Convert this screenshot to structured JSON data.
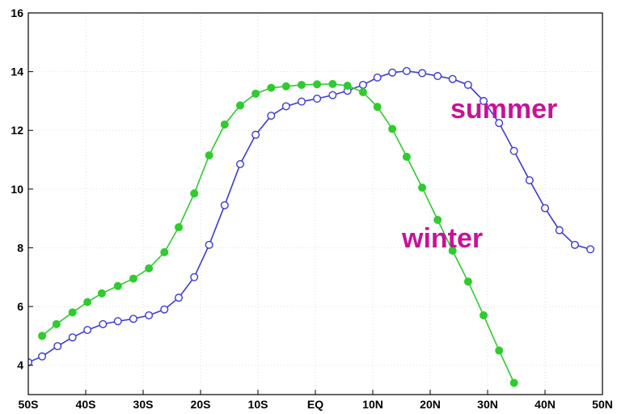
{
  "chart_data": {
    "type": "line",
    "xlim": [
      -50,
      50
    ],
    "xticks": [
      {
        "value": -50,
        "label": "50S"
      },
      {
        "value": -40,
        "label": "40S"
      },
      {
        "value": -30,
        "label": "30S"
      },
      {
        "value": -20,
        "label": "20S"
      },
      {
        "value": -10,
        "label": "10S"
      },
      {
        "value": 0,
        "label": "EQ"
      },
      {
        "value": 10,
        "label": "10N"
      },
      {
        "value": 20,
        "label": "20N"
      },
      {
        "value": 30,
        "label": "30N"
      },
      {
        "value": 40,
        "label": "40N"
      },
      {
        "value": 50,
        "label": "50N"
      }
    ],
    "ylim": [
      3,
      16
    ],
    "yticks": [
      4,
      6,
      8,
      10,
      12,
      14,
      16
    ],
    "grid": true,
    "label_color": "#c8129a",
    "series": [
      {
        "name": "summer",
        "color": "#3a3ad8",
        "marker": "open",
        "x": [
          -50,
          -47.6,
          -44.9,
          -42.3,
          -39.7,
          -37.0,
          -34.4,
          -31.7,
          -29.0,
          -26.3,
          -23.8,
          -21.1,
          -18.5,
          -15.8,
          -13.1,
          -10.4,
          -7.7,
          -5.1,
          -2.4,
          0.3,
          3.0,
          5.6,
          8.3,
          10.8,
          13.4,
          15.9,
          18.6,
          21.3,
          23.9,
          26.6,
          29.3,
          32.0,
          34.6,
          37.3,
          40.0,
          42.5,
          45.2,
          47.9
        ],
        "values": [
          4.1,
          4.3,
          4.65,
          4.95,
          5.2,
          5.4,
          5.5,
          5.58,
          5.7,
          5.9,
          6.3,
          7.0,
          8.1,
          9.45,
          10.85,
          11.85,
          12.5,
          12.82,
          12.98,
          13.08,
          13.2,
          13.35,
          13.55,
          13.8,
          13.97,
          14.02,
          13.95,
          13.85,
          13.75,
          13.55,
          13.0,
          12.25,
          11.3,
          10.3,
          9.35,
          8.6,
          8.1,
          7.95
        ]
      },
      {
        "name": "winter",
        "color": "#2ecc2e",
        "marker": "filled",
        "x": [
          -47.6,
          -45.1,
          -42.3,
          -39.7,
          -37.2,
          -34.4,
          -31.7,
          -29.0,
          -26.3,
          -23.8,
          -21.1,
          -18.5,
          -15.8,
          -13.1,
          -10.4,
          -7.7,
          -5.1,
          -2.4,
          0.3,
          3.0,
          5.6,
          8.3,
          10.8,
          13.4,
          15.9,
          18.6,
          21.3,
          23.9,
          26.6,
          29.3,
          32.0,
          34.6
        ],
        "values": [
          5.0,
          5.4,
          5.8,
          6.15,
          6.45,
          6.7,
          6.95,
          7.3,
          7.85,
          8.7,
          9.85,
          11.15,
          12.2,
          12.85,
          13.25,
          13.45,
          13.5,
          13.55,
          13.57,
          13.58,
          13.52,
          13.3,
          12.8,
          12.05,
          11.1,
          10.05,
          8.95,
          7.9,
          6.85,
          5.7,
          4.5,
          3.4
        ]
      }
    ]
  }
}
